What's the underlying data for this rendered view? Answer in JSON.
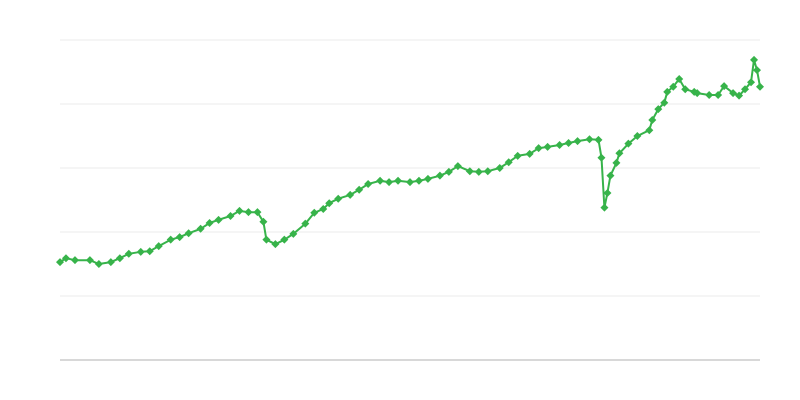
{
  "chart_data": {
    "type": "line",
    "title": "",
    "xlabel": "",
    "ylabel": "",
    "xlim": [
      0,
      234
    ],
    "ylim": [
      0,
      5
    ],
    "grid": true,
    "legend": "none",
    "marker": "diamond",
    "colors": {
      "series": "#37b34a",
      "grid": "#ebebeb",
      "axis": "#b0b0b0"
    },
    "series": [
      {
        "x": [
          0,
          2,
          5,
          10,
          13,
          17,
          20,
          23,
          27,
          30,
          33,
          37,
          40,
          43,
          47,
          50,
          53,
          57,
          60,
          63,
          66,
          68,
          69,
          72,
          75,
          78,
          82,
          85,
          88,
          90,
          93,
          97,
          100,
          103,
          107,
          110,
          113,
          117,
          120,
          123,
          127,
          130,
          133,
          137,
          140,
          143,
          147,
          150,
          153,
          157,
          160,
          163,
          167,
          170,
          173,
          177,
          180,
          181,
          182,
          183,
          184,
          186,
          187,
          190,
          193,
          197,
          198,
          200,
          202,
          203,
          205,
          207,
          209,
          212,
          213,
          217,
          220,
          222,
          225,
          227,
          229,
          231,
          232,
          233,
          234
        ],
        "y": [
          1.53,
          1.59,
          1.56,
          1.56,
          1.5,
          1.53,
          1.59,
          1.66,
          1.69,
          1.7,
          1.78,
          1.88,
          1.92,
          1.98,
          2.05,
          2.14,
          2.19,
          2.25,
          2.33,
          2.31,
          2.31,
          2.16,
          1.88,
          1.81,
          1.88,
          1.97,
          2.13,
          2.3,
          2.36,
          2.45,
          2.52,
          2.58,
          2.66,
          2.75,
          2.8,
          2.78,
          2.8,
          2.78,
          2.8,
          2.83,
          2.88,
          2.94,
          3.03,
          2.95,
          2.94,
          2.95,
          3.0,
          3.09,
          3.19,
          3.22,
          3.31,
          3.33,
          3.36,
          3.39,
          3.42,
          3.45,
          3.44,
          3.16,
          2.38,
          2.61,
          2.88,
          3.08,
          3.23,
          3.38,
          3.5,
          3.59,
          3.75,
          3.92,
          4.02,
          4.19,
          4.27,
          4.39,
          4.23,
          4.19,
          4.17,
          4.14,
          4.14,
          4.28,
          4.17,
          4.13,
          4.23,
          4.34,
          4.69,
          4.53,
          4.27
        ]
      }
    ]
  }
}
